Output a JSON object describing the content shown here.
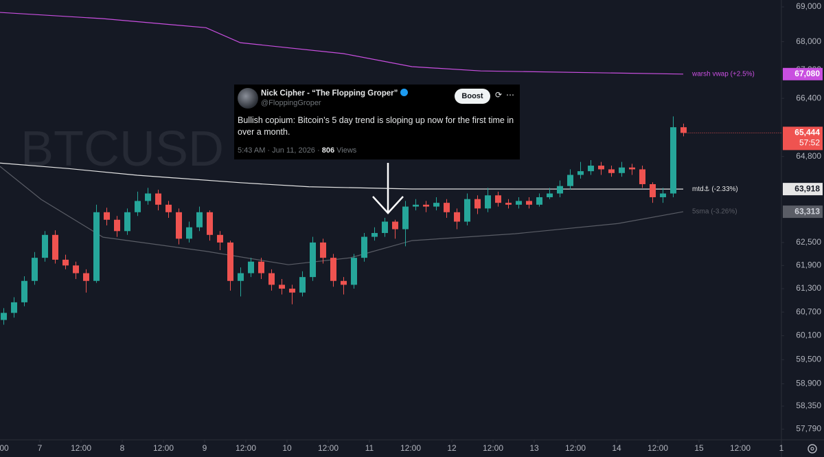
{
  "chart_data": {
    "type": "candlestick",
    "watermark": "BTCUSD",
    "log_scale": true,
    "grid": false,
    "xlim": [
      -11.6,
      216
    ],
    "ylim": [
      57530,
      69200
    ],
    "xticks": [
      {
        "value": -12,
        "label": "00"
      },
      {
        "value": 0,
        "label": "7"
      },
      {
        "value": 12,
        "label": "12:00"
      },
      {
        "value": 24,
        "label": "8"
      },
      {
        "value": 36,
        "label": "12:00"
      },
      {
        "value": 48,
        "label": "9"
      },
      {
        "value": 60,
        "label": "12:00"
      },
      {
        "value": 72,
        "label": "10"
      },
      {
        "value": 84,
        "label": "12:00"
      },
      {
        "value": 96,
        "label": "11"
      },
      {
        "value": 108,
        "label": "12:00"
      },
      {
        "value": 120,
        "label": "12"
      },
      {
        "value": 132,
        "label": "12:00"
      },
      {
        "value": 144,
        "label": "13"
      },
      {
        "value": 156,
        "label": "12:00"
      },
      {
        "value": 168,
        "label": "14"
      },
      {
        "value": 180,
        "label": "12:00"
      },
      {
        "value": 192,
        "label": "15"
      },
      {
        "value": 204,
        "label": "12:00"
      },
      {
        "value": 216,
        "label": "1"
      }
    ],
    "yticks": [
      {
        "value": 69000,
        "label": "69,000"
      },
      {
        "value": 68000,
        "label": "68,000"
      },
      {
        "value": 67200,
        "label": "67,200"
      },
      {
        "value": 66400,
        "label": "66,400"
      },
      {
        "value": 64800,
        "label": "64,800"
      },
      {
        "value": 62500,
        "label": "62,500"
      },
      {
        "value": 61900,
        "label": "61,900"
      },
      {
        "value": 61300,
        "label": "61,300"
      },
      {
        "value": 60700,
        "label": "60,700"
      },
      {
        "value": 60100,
        "label": "60,100"
      },
      {
        "value": 59500,
        "label": "59,500"
      },
      {
        "value": 58900,
        "label": "58,900"
      },
      {
        "value": 58350,
        "label": "58,350"
      },
      {
        "value": 57790,
        "label": "57,790"
      }
    ],
    "up_color": "#26a69a",
    "down_color": "#ef5350",
    "candles": {
      "x": [
        -10.5,
        -7.5,
        -4.5,
        -1.5,
        1.5,
        4.5,
        7.5,
        10.5,
        13.5,
        16.5,
        19.5,
        22.5,
        25.5,
        28.5,
        31.5,
        34.5,
        37.5,
        40.5,
        43.5,
        46.5,
        49.5,
        52.5,
        55.5,
        58.5,
        61.5,
        64.5,
        67.5,
        70.5,
        73.5,
        76.5,
        79.5,
        82.5,
        85.5,
        88.5,
        91.5,
        94.5,
        97.5,
        100.5,
        103.5,
        106.5,
        109.5,
        112.5,
        115.5,
        118.5,
        121.5,
        124.5,
        127.5,
        130.5,
        133.5,
        136.5,
        139.5,
        142.5,
        145.5,
        148.5,
        151.5,
        154.5,
        157.5,
        160.5,
        163.5,
        166.5,
        169.5,
        172.5,
        175.5,
        178.5,
        181.5,
        184.5,
        187.5
      ],
      "open": [
        60500,
        60680,
        60950,
        61500,
        62100,
        62700,
        62050,
        61900,
        61700,
        61500,
        63300,
        63100,
        62800,
        63300,
        63600,
        63800,
        63500,
        63300,
        62600,
        62900,
        63300,
        62700,
        62500,
        61500,
        61700,
        62000,
        61700,
        61400,
        61300,
        61200,
        61600,
        62500,
        62100,
        61500,
        61400,
        62100,
        62650,
        62750,
        63050,
        62850,
        63450,
        63500,
        63450,
        63550,
        63300,
        63050,
        63650,
        63400,
        63750,
        63550,
        63500,
        63600,
        63500,
        63700,
        63800,
        64000,
        64300,
        64400,
        64550,
        64450,
        64350,
        64500,
        64450,
        64050,
        63700,
        63800,
        65600
      ],
      "high": [
        60800,
        61080,
        61620,
        62250,
        62800,
        62820,
        62180,
        62000,
        61800,
        63500,
        63420,
        63200,
        63400,
        63850,
        63950,
        63900,
        63600,
        63400,
        63050,
        63450,
        63350,
        62800,
        62550,
        61850,
        62100,
        62100,
        61800,
        61550,
        61400,
        61750,
        62650,
        62600,
        62200,
        61600,
        62200,
        62750,
        62900,
        63150,
        63100,
        63600,
        63650,
        63600,
        63700,
        63650,
        63400,
        63800,
        63750,
        63950,
        63850,
        63650,
        63700,
        63700,
        63800,
        63950,
        64150,
        64450,
        64650,
        64700,
        64650,
        64550,
        64650,
        64600,
        64550,
        64100,
        63950,
        65900,
        65700
      ],
      "low": [
        60380,
        60560,
        60850,
        61400,
        62000,
        61950,
        61800,
        61550,
        61200,
        61450,
        62950,
        62650,
        62700,
        63200,
        63500,
        63350,
        63150,
        62450,
        62500,
        62800,
        62550,
        62300,
        61250,
        61100,
        61600,
        61550,
        61250,
        61150,
        60900,
        61100,
        61500,
        61950,
        61350,
        61150,
        61300,
        62000,
        62550,
        62650,
        62600,
        62400,
        63350,
        63300,
        63350,
        63150,
        62850,
        62950,
        63250,
        63300,
        63450,
        63400,
        63400,
        63400,
        63450,
        63650,
        63700,
        63900,
        64200,
        64300,
        64300,
        64250,
        64250,
        64300,
        63950,
        63550,
        63550,
        63700,
        65350
      ],
      "close": [
        60680,
        60950,
        61500,
        62100,
        62700,
        62050,
        61900,
        61700,
        61500,
        63300,
        63100,
        62800,
        63300,
        63600,
        63800,
        63500,
        63300,
        62600,
        62900,
        63300,
        62700,
        62500,
        61500,
        61700,
        62000,
        61700,
        61400,
        61300,
        61200,
        61600,
        62500,
        62100,
        61500,
        61400,
        62100,
        62650,
        62750,
        63050,
        62850,
        63450,
        63500,
        63450,
        63550,
        63300,
        63050,
        63650,
        63400,
        63750,
        63550,
        63500,
        63600,
        63500,
        63700,
        63800,
        64000,
        64300,
        64400,
        64550,
        64450,
        64350,
        64500,
        64450,
        64050,
        63700,
        63800,
        65600,
        65444
      ]
    },
    "last_price": {
      "value": 65444,
      "label": "65,444"
    },
    "countdown": "57:52",
    "series": [
      {
        "name": "warsh vwap (+2.5%)",
        "color": "#c94fe0",
        "tag_text_color": "#ffffff",
        "x": [
          -11.6,
          18.4,
          48.4,
          58.4,
          88.4,
          108.4,
          128.4,
          187.4
        ],
        "values": [
          68840,
          68660,
          68400,
          67970,
          67660,
          67290,
          67170,
          67080
        ],
        "last": {
          "value": 67080,
          "label": "67,080"
        }
      },
      {
        "name": "mtd⚓ (-2.33%)",
        "color": "#e6e6e6",
        "tag_text_color": "#131722",
        "x": [
          -11.6,
          8.4,
          28.4,
          58.4,
          78.4,
          108.4,
          187.4
        ],
        "values": [
          64620,
          64470,
          64290,
          64090,
          63980,
          63920,
          63918
        ],
        "last": {
          "value": 63918,
          "label": "63,918"
        }
      },
      {
        "name": "5sma (-3.26%)",
        "color": "#5a5d66",
        "tag_text_color": "#d1d4dc",
        "x": [
          -11.6,
          0.4,
          18.4,
          48.4,
          72.4,
          90.4,
          108.4,
          138.4,
          168.4,
          187.4
        ],
        "values": [
          64530,
          63640,
          62640,
          62270,
          61920,
          62100,
          62550,
          62730,
          63000,
          63313
        ],
        "last": {
          "value": 63313,
          "label": "63,313"
        }
      }
    ]
  },
  "tweet": {
    "author": "Nick Cipher - “The Flopping Groper”",
    "handle": "@FloppingGroper",
    "button": "Boost",
    "text": "Bullish copium: Bitcoin’s 5 day trend is sloping up now for the first time in over a month.",
    "timestamp": "5:43 AM · Jun 11, 2026 ·",
    "views": "806",
    "views_label": "Views"
  }
}
